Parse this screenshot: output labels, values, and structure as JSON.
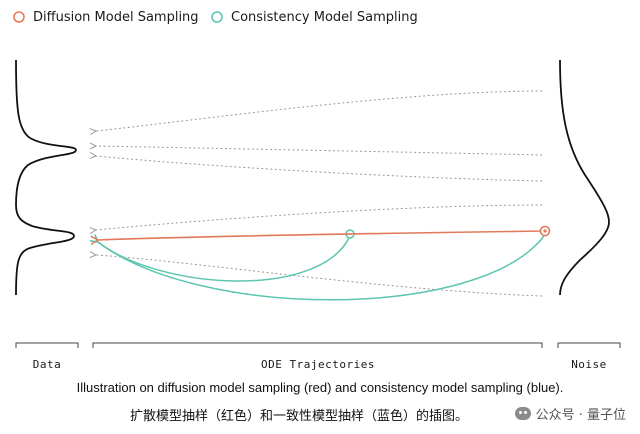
{
  "legend": {
    "diffusion_label": "Diffusion Model Sampling",
    "consistency_label": "Consistency Model Sampling"
  },
  "colors": {
    "diffusion": "#e07a5a",
    "consistency": "#5cc6b0",
    "trajectory": "#9a9a9a",
    "curve": "#111111"
  },
  "sections": {
    "data_label": "Data",
    "ode_label": "ODE Trajectories",
    "noise_label": "Noise"
  },
  "caption": {
    "english": "Illustration on diffusion model sampling (red) and consistency model sampling (blue).",
    "chinese": "扩散模型抽样（红色）和一致性模型抽样（蓝色）的插图。"
  },
  "watermark": {
    "text": "公众号 · 量子位"
  }
}
